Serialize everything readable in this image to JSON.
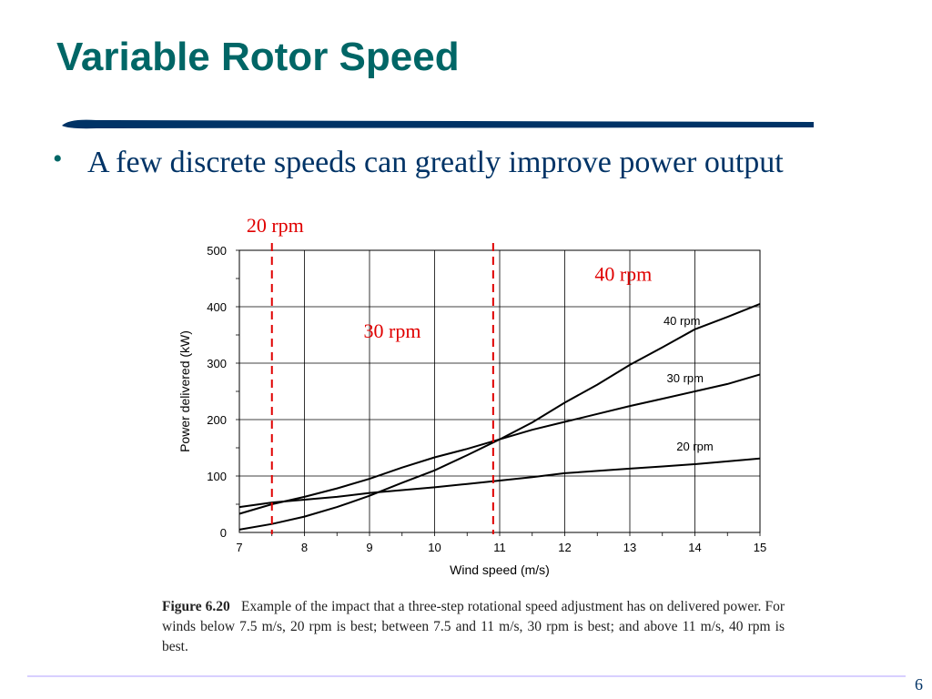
{
  "slide": {
    "title": "Variable Rotor Speed",
    "bullet": "A few discrete speeds can greatly improve power output",
    "page_number": "6",
    "caption_label": "Figure 6.20",
    "caption_text": "Example of the impact that a three-step rotational speed adjustment has on delivered power. For winds below 7.5 m/s, 20 rpm is best; between 7.5 and 11 m/s, 30 rpm is best; and above 11 m/s, 40 rpm is best.",
    "colors": {
      "title": "#006666",
      "rule": "#003366",
      "annotation": "#e00000"
    }
  },
  "chart_data": {
    "type": "line",
    "xlabel": "Wind speed (m/s)",
    "ylabel": "Power delivered (kW)",
    "xlim": [
      7,
      15
    ],
    "ylim": [
      0,
      500
    ],
    "xticks": [
      7,
      8,
      9,
      10,
      11,
      12,
      13,
      14,
      15
    ],
    "yticks": [
      0,
      100,
      200,
      300,
      400,
      500
    ],
    "grid": true,
    "series": [
      {
        "name": "40 rpm",
        "x": [
          7,
          7.5,
          8,
          8.5,
          9,
          9.5,
          10,
          10.5,
          11,
          11.5,
          12,
          12.5,
          13,
          13.5,
          14,
          14.5,
          15
        ],
        "y": [
          5,
          15,
          28,
          45,
          65,
          88,
          110,
          137,
          165,
          195,
          230,
          262,
          297,
          328,
          360,
          382,
          405
        ]
      },
      {
        "name": "30 rpm",
        "x": [
          7,
          7.5,
          8,
          8.5,
          9,
          9.5,
          10,
          10.5,
          11,
          11.5,
          12,
          12.5,
          13,
          13.5,
          14,
          14.5,
          15
        ],
        "y": [
          33,
          50,
          63,
          78,
          95,
          115,
          133,
          148,
          165,
          182,
          196,
          210,
          224,
          237,
          250,
          263,
          280
        ]
      },
      {
        "name": "20 rpm",
        "x": [
          7,
          7.5,
          8,
          8.5,
          9,
          9.5,
          10,
          10.5,
          11,
          11.5,
          12,
          12.5,
          13,
          13.5,
          14,
          14.5,
          15
        ],
        "y": [
          45,
          53,
          58,
          63,
          70,
          75,
          80,
          86,
          92,
          98,
          105,
          109,
          113,
          117,
          121,
          126,
          131
        ]
      }
    ],
    "series_labels": [
      {
        "text": "40 rpm",
        "x": 13.8,
        "y": 368
      },
      {
        "text": "30 rpm",
        "x": 13.85,
        "y": 266
      },
      {
        "text": "20 rpm",
        "x": 14.0,
        "y": 145
      }
    ],
    "markers": [
      {
        "x": 7.5,
        "label": "20 rpm"
      },
      {
        "x": 10.9,
        "label": ""
      }
    ],
    "annotations": [
      {
        "text": "20 rpm",
        "x": 7.55,
        "y": 532
      },
      {
        "text": "30 rpm",
        "x": 9.35,
        "y": 345
      },
      {
        "text": "40 rpm",
        "x": 12.9,
        "y": 446
      }
    ]
  }
}
